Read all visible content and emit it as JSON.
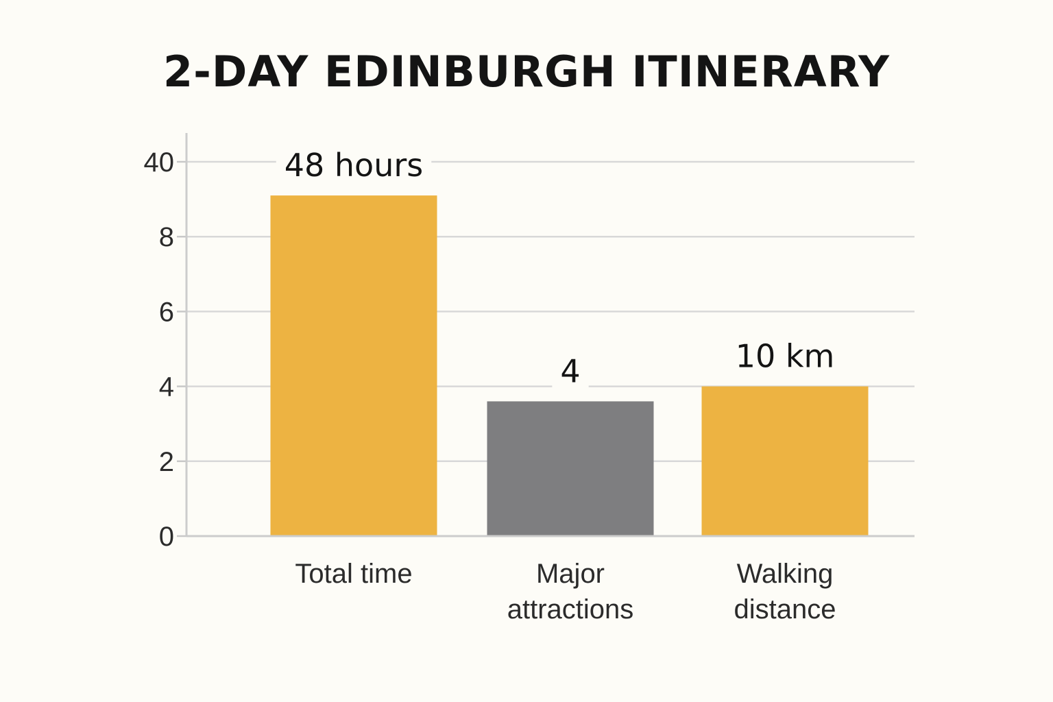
{
  "chart_data": {
    "type": "bar",
    "title": "2-DAY EDINBURGH ITINERARY",
    "xlabel": "",
    "ylabel": "",
    "y_tick_labels": [
      "0",
      "2",
      "4",
      "6",
      "8",
      "40"
    ],
    "grid": true,
    "legend": "none",
    "bars": [
      {
        "category_lines": [
          "Total time"
        ],
        "label": "48 hours",
        "axis_value": 9.1,
        "color": "#edb342"
      },
      {
        "category_lines": [
          "Major",
          "attractions"
        ],
        "label": "4",
        "axis_value": 3.6,
        "color": "#7e7e80"
      },
      {
        "category_lines": [
          "Walking",
          "distance"
        ],
        "label": "10 km",
        "axis_value": 4.0,
        "color": "#edb342"
      }
    ]
  }
}
